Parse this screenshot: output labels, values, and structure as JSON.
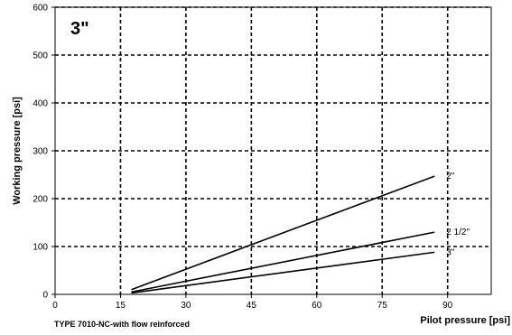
{
  "chart_data": {
    "type": "line",
    "title": "3\"",
    "xlabel": "Pilot pressure [psi]",
    "ylabel": "Working pressure [psi]",
    "footnote": "TYPE 7010-NC-with flow reinforced",
    "xlim": [
      0,
      100
    ],
    "ylim": [
      0,
      600
    ],
    "xticks": [
      0,
      15,
      30,
      45,
      60,
      75,
      90
    ],
    "yticks": [
      0,
      100,
      200,
      300,
      400,
      500,
      600
    ],
    "grid": true,
    "series": [
      {
        "name": "2\"",
        "x": [
          17.5,
          87
        ],
        "y": [
          10,
          247
        ]
      },
      {
        "name": "2 1/2\"",
        "x": [
          17.5,
          87
        ],
        "y": [
          5,
          130
        ]
      },
      {
        "name": "3\"",
        "x": [
          17.5,
          87
        ],
        "y": [
          3,
          88
        ]
      }
    ]
  }
}
